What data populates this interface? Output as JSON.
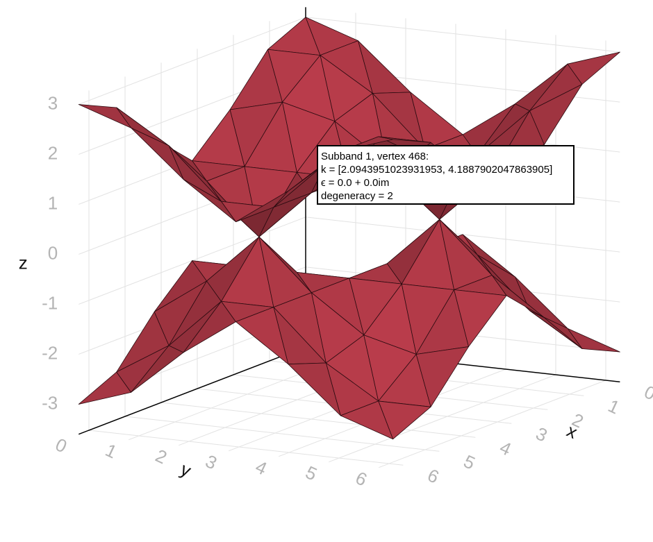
{
  "chart_data": {
    "type": "surface",
    "x": [
      0,
      1.0472,
      2.0944,
      3.1416,
      4.1888,
      5.236,
      6.2832
    ],
    "y": [
      0,
      1.0472,
      2.0944,
      3.1416,
      4.1888,
      5.236,
      6.2832
    ],
    "series": [
      {
        "color": "#b23a48",
        "values": [
          [
            3,
            2.646,
            1.732,
            1,
            1.732,
            2.646,
            3
          ],
          [
            2.646,
            2.646,
            2,
            1,
            1,
            2,
            2.646
          ],
          [
            1.732,
            2,
            1.732,
            1,
            0,
            1,
            1.732
          ],
          [
            1,
            1,
            1,
            1,
            1,
            1,
            1
          ],
          [
            1.732,
            1,
            0,
            1,
            1.732,
            2,
            1.732
          ],
          [
            2.646,
            2,
            1,
            1,
            2,
            2.646,
            2.646
          ],
          [
            3,
            2.646,
            1.732,
            1,
            1.732,
            2.646,
            3
          ]
        ]
      },
      {
        "color": "#b23a48",
        "values": [
          [
            -3,
            -2.646,
            -1.732,
            -1,
            -1.732,
            -2.646,
            -3
          ],
          [
            -2.646,
            -2.646,
            -2,
            -1,
            -1,
            -2,
            -2.646
          ],
          [
            -1.732,
            -2,
            -1.732,
            -1,
            0,
            -1,
            -1.732
          ],
          [
            -1,
            -1,
            -1,
            -1,
            -1,
            -1,
            -1
          ],
          [
            -1.732,
            -1,
            0,
            -1,
            -1.732,
            -2,
            -1.732
          ],
          [
            -2.646,
            -2,
            -1,
            -1,
            -2,
            -2.646,
            -2.646
          ],
          [
            -3,
            -2.646,
            -1.732,
            -1,
            -1.732,
            -2.646,
            -3
          ]
        ]
      }
    ],
    "x_label": "x",
    "y_label": "y",
    "z_label": "z",
    "xlim": [
      0,
      6.2832
    ],
    "ylim": [
      0,
      6.2832
    ],
    "zlim": [
      -3.6,
      3.2
    ],
    "xticks": [
      0,
      1,
      2,
      3,
      4,
      5,
      6
    ],
    "yticks": [
      0,
      1,
      2,
      3,
      4,
      5,
      6
    ],
    "zticks": [
      -3,
      -2,
      -1,
      0,
      1,
      2,
      3
    ],
    "grid": true,
    "tooltip": [
      "Subband 1, vertex 468:",
      " k = [2.0943951023931953, 4.1887902047863905]",
      " ϵ = 0.0 + 0.0im",
      " degeneracy = 2"
    ]
  }
}
